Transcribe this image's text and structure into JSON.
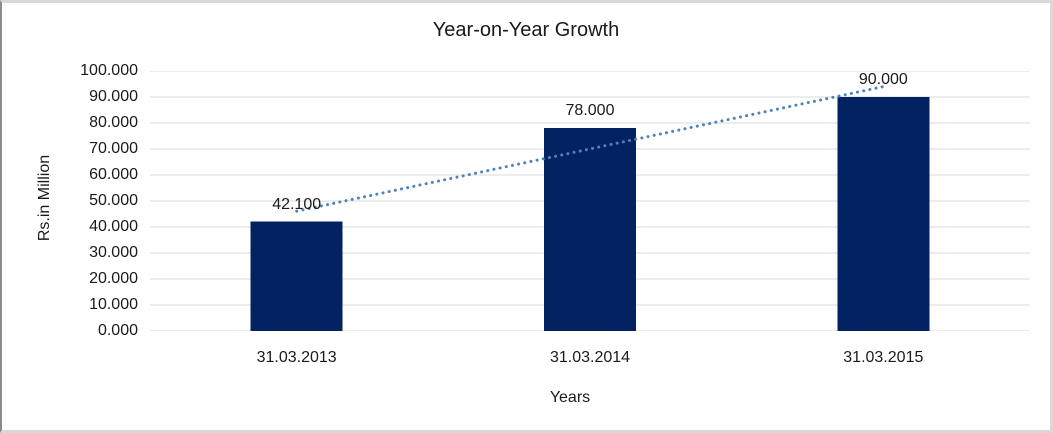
{
  "chart_data": {
    "type": "bar",
    "title": "Year-on-Year Growth",
    "xlabel": "Years",
    "ylabel": "Rs.in Million",
    "categories": [
      "31.03.2013",
      "31.03.2014",
      "31.03.2015"
    ],
    "values": [
      42.1,
      78,
      90
    ],
    "data_labels": [
      "42.100",
      "78.000",
      "90.000"
    ],
    "ylim": [
      0,
      100
    ],
    "ytick_step": 10,
    "ytick_labels": [
      "0.000",
      "10.000",
      "20.000",
      "30.000",
      "40.000",
      "50.000",
      "60.000",
      "70.000",
      "80.000",
      "90.000",
      "100.000"
    ],
    "grid": true,
    "legend_position": "none",
    "bar_color": "#022262",
    "gridline_color": "#d9d9d9",
    "text_color": "#1a1a1a",
    "frame_color": "#d9d9d9",
    "trendline": {
      "type": "linear",
      "style": "dotted",
      "color": "#4f81bd"
    }
  }
}
